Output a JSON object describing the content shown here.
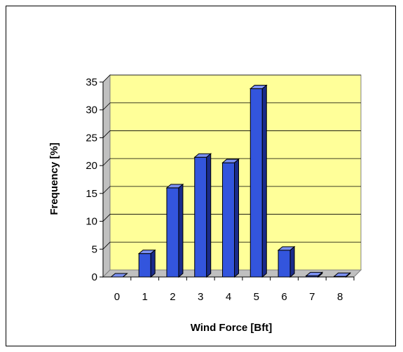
{
  "chart_data": {
    "type": "bar",
    "title": "",
    "xlabel": "Wind Force [Bft]",
    "ylabel": "Frequency [%]",
    "categories": [
      "0",
      "1",
      "2",
      "3",
      "4",
      "5",
      "6",
      "7",
      "8"
    ],
    "values": [
      0,
      4.2,
      16,
      21.5,
      20.5,
      33.8,
      4.8,
      0.2,
      0.1
    ],
    "ylim": [
      0,
      35
    ],
    "yticks": [
      "0",
      "5",
      "10",
      "15",
      "20",
      "25",
      "30",
      "35"
    ],
    "grid": true,
    "legend": "none",
    "style": "3d-column"
  },
  "colors": {
    "plot_background": "#ffff99",
    "side_wall": "#c0c0c0",
    "bar_front": "#3355dd",
    "bar_top": "#7a8ff0",
    "bar_side": "#1a2b8a",
    "gridline": "#000000"
  }
}
